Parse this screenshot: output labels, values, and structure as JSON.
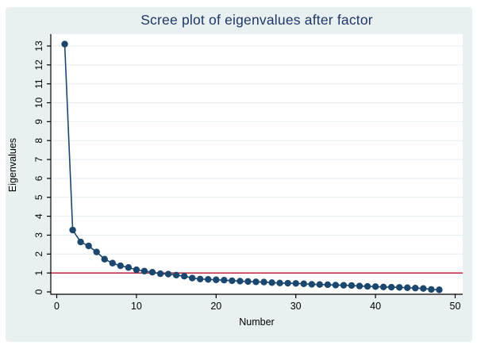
{
  "window": {
    "background_color": "#ffffff",
    "graph_background_color": "#e9f0f2"
  },
  "chart_data": {
    "type": "line",
    "title": "Scree plot of eigenvalues after factor",
    "xlabel": "Number",
    "ylabel": "Eigenvalues",
    "xlim": [
      0,
      50
    ],
    "ylim": [
      0,
      13
    ],
    "x_ticks": [
      0,
      10,
      20,
      30,
      40,
      50
    ],
    "y_ticks": [
      0,
      1,
      2,
      3,
      4,
      5,
      6,
      7,
      8,
      9,
      10,
      11,
      12,
      13
    ],
    "grid": "horizontal-only",
    "legend": "none",
    "reference_line": {
      "axis": "y",
      "value": 1,
      "color": "#c2354b"
    },
    "series": [
      {
        "name": "Eigenvalues",
        "marker": "filled-circle",
        "color": "#1a476f",
        "x": [
          1,
          2,
          3,
          4,
          5,
          6,
          7,
          8,
          9,
          10,
          11,
          12,
          13,
          14,
          15,
          16,
          17,
          18,
          19,
          20,
          21,
          22,
          23,
          24,
          25,
          26,
          27,
          28,
          29,
          30,
          31,
          32,
          33,
          34,
          35,
          36,
          37,
          38,
          39,
          40,
          41,
          42,
          43,
          44,
          45,
          46,
          47,
          48
        ],
        "values": [
          13.1,
          3.27,
          2.64,
          2.43,
          2.11,
          1.73,
          1.52,
          1.38,
          1.29,
          1.17,
          1.1,
          1.04,
          0.96,
          0.94,
          0.89,
          0.83,
          0.73,
          0.68,
          0.66,
          0.64,
          0.62,
          0.59,
          0.57,
          0.55,
          0.53,
          0.52,
          0.49,
          0.47,
          0.46,
          0.45,
          0.43,
          0.4,
          0.39,
          0.38,
          0.36,
          0.35,
          0.34,
          0.31,
          0.29,
          0.28,
          0.26,
          0.25,
          0.24,
          0.22,
          0.2,
          0.18,
          0.13,
          0.11
        ]
      }
    ],
    "colors": {
      "title": "#1e3767",
      "axis": "#000000",
      "tick_label": "#000000",
      "grid": "#e4eef2",
      "plot_background": "#ffffff"
    }
  }
}
